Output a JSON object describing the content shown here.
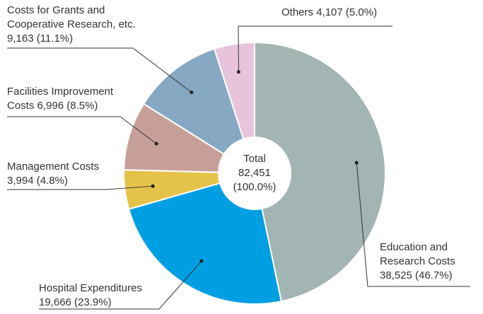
{
  "chart_data": {
    "type": "donut",
    "categories": [
      "Education and Research Costs",
      "Hospital Expenditures",
      "Management Costs",
      "Facilities Improvement Costs",
      "Costs for Grants and Cooperative Research, etc.",
      "Others"
    ],
    "values": [
      38525,
      19666,
      3994,
      6996,
      9163,
      4107
    ],
    "value_labels": [
      "38,525 (46.7%)",
      "19,666 (23.9%)",
      "3,994 (4.8%)",
      "6,996 (8.5%)",
      "9,163 (11.1%)",
      "4,107 (5.0%)"
    ],
    "colors": [
      "#a3b5b2",
      "#009fe3",
      "#e5c24a",
      "#c79f99",
      "#86a8c2",
      "#e8c4dc"
    ],
    "center_label": {
      "title": "Total",
      "value_label": "82,451",
      "share_label": "(100.0%)"
    }
  }
}
